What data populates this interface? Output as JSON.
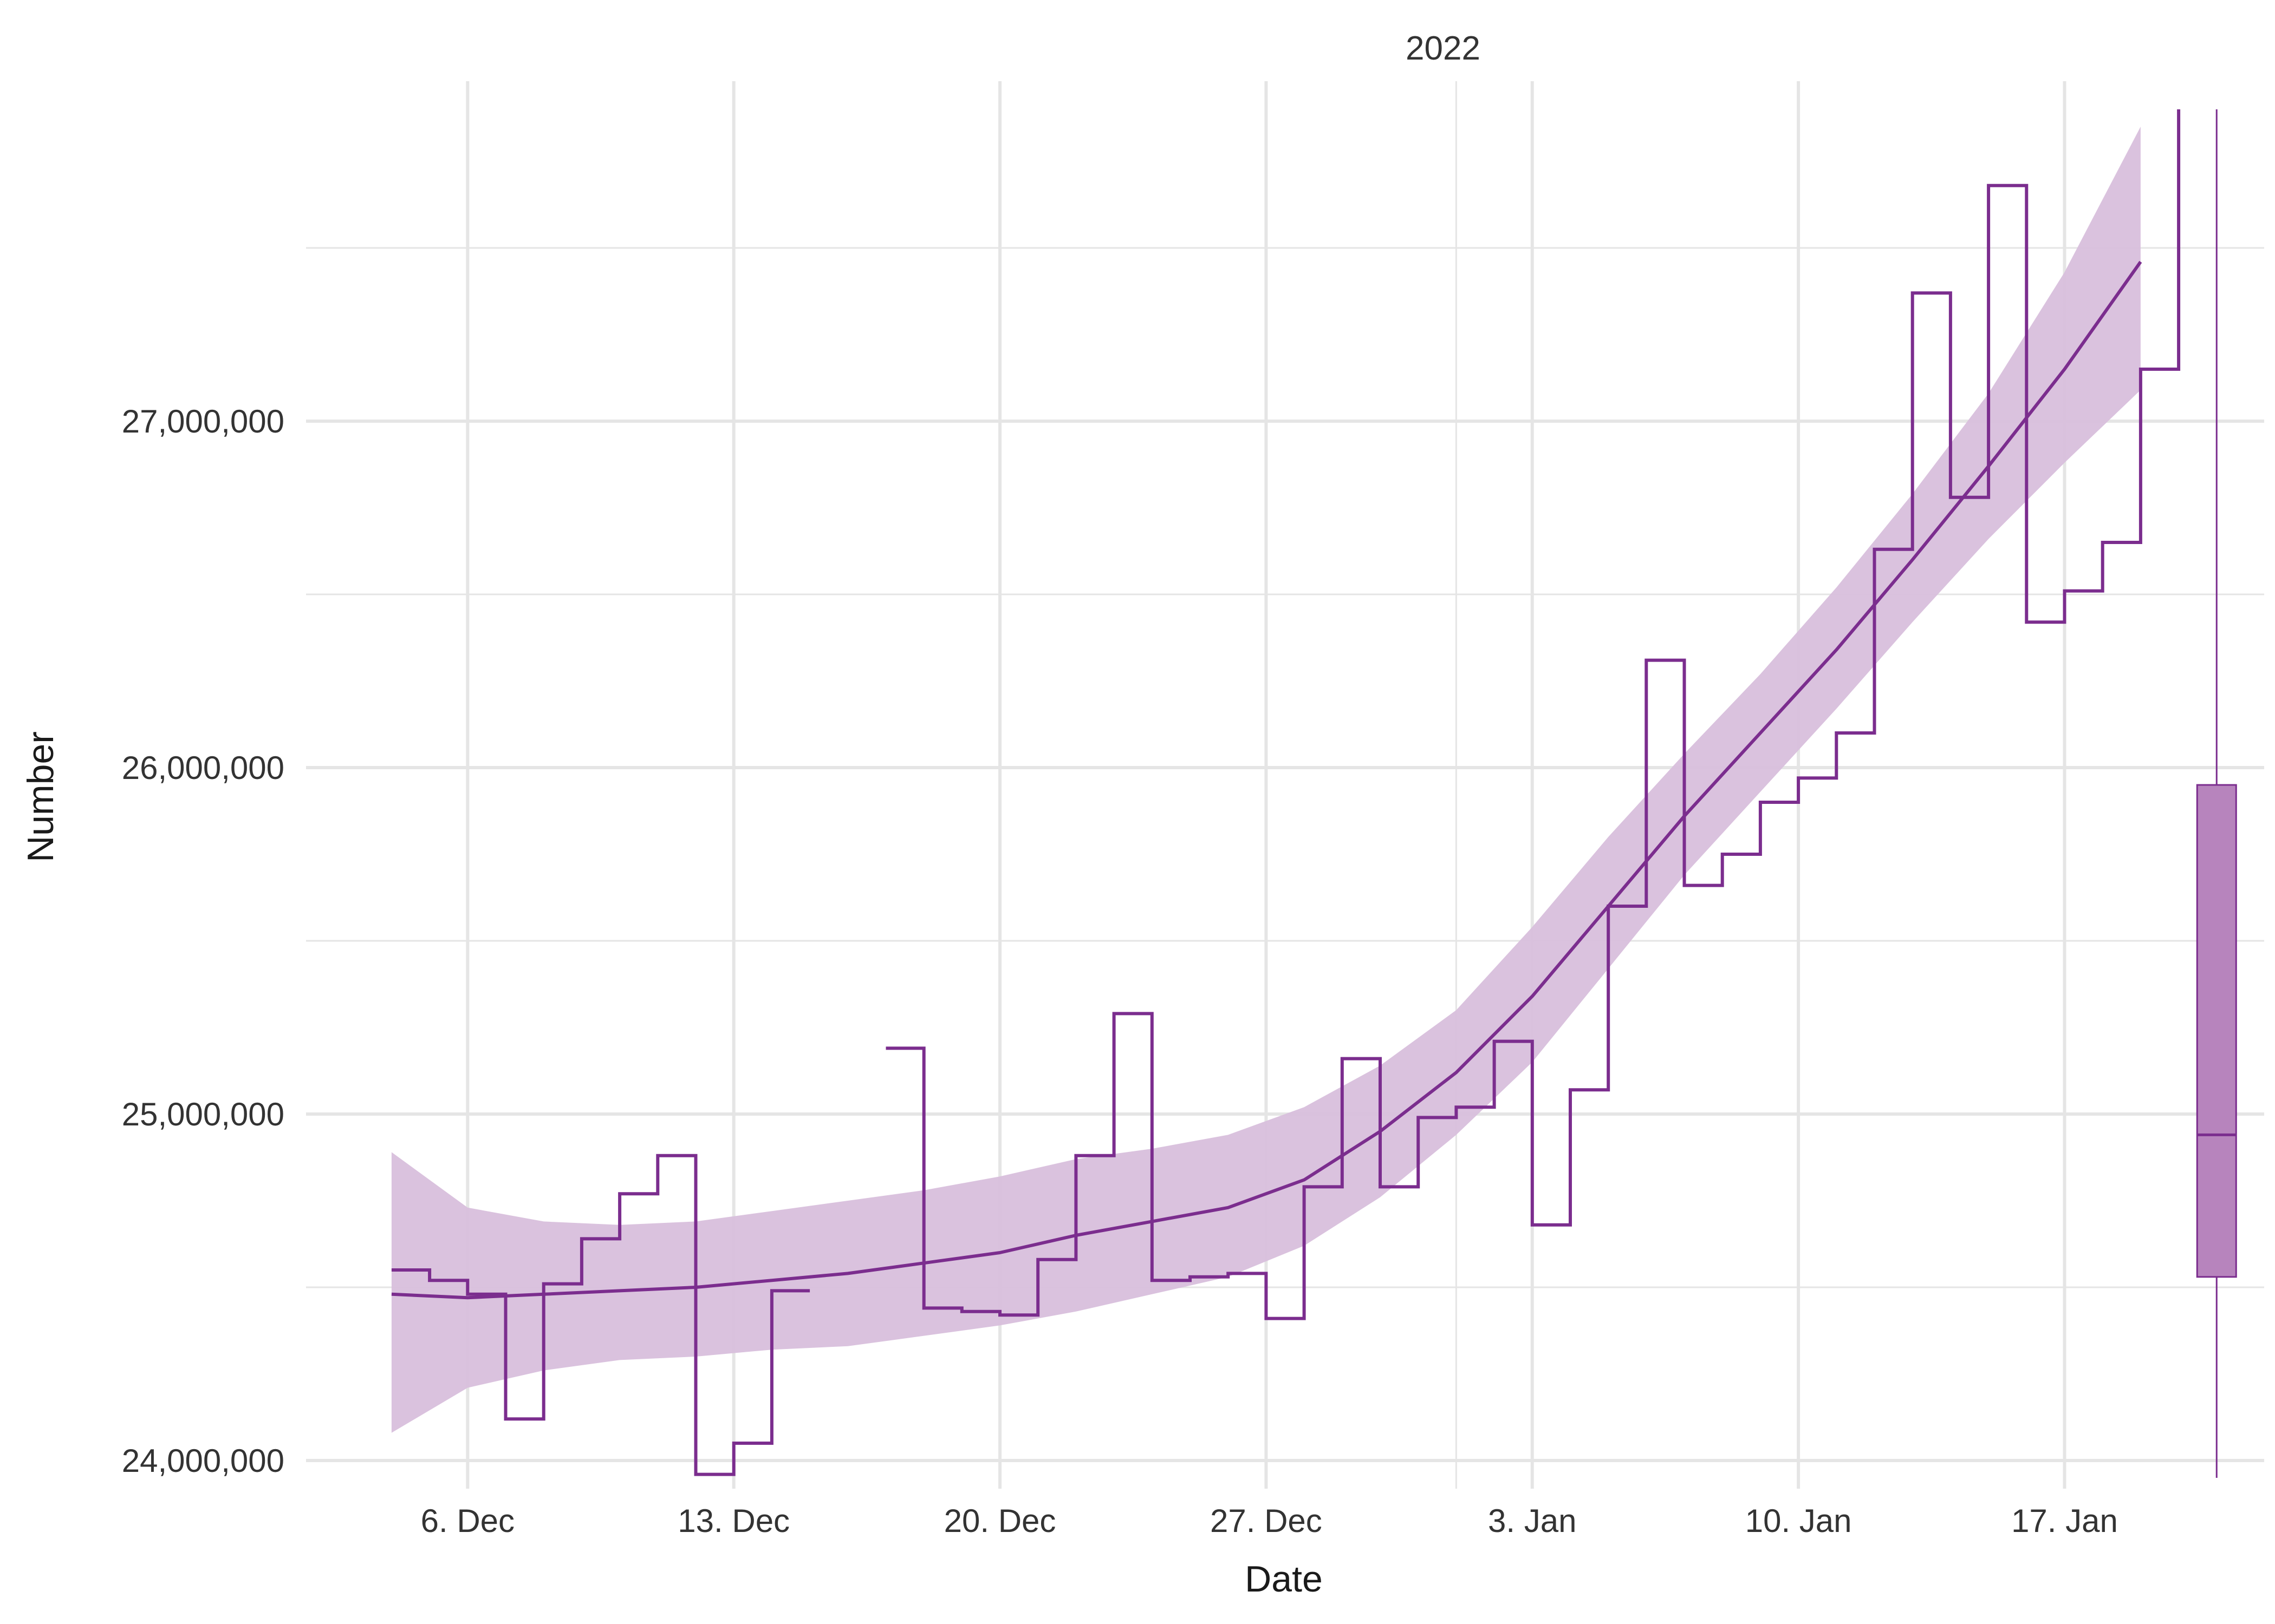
{
  "chart_data": {
    "type": "line",
    "xlabel": "Date",
    "ylabel": "Number",
    "annotation": "2022",
    "grid": true,
    "colors": {
      "series": "#7b2d8e",
      "ribbon": "#d8bfdc",
      "box_fill": "#b784bd",
      "grid": "#e5e5e5"
    },
    "x_ticks": [
      {
        "date": "2021-12-06",
        "label": "6. Dec"
      },
      {
        "date": "2021-12-13",
        "label": "13. Dec"
      },
      {
        "date": "2021-12-20",
        "label": "20. Dec"
      },
      {
        "date": "2021-12-27",
        "label": "27. Dec"
      },
      {
        "date": "2022-01-03",
        "label": "3. Jan"
      },
      {
        "date": "2022-01-10",
        "label": "10. Jan"
      },
      {
        "date": "2022-01-17",
        "label": "17. Jan"
      }
    ],
    "x_annotation_date": "2022-01-01",
    "xlim": [
      "2021-12-01T18:00",
      "2022-01-22T06:00"
    ],
    "y_ticks": [
      {
        "value": 24000000,
        "label": "24,000,000"
      },
      {
        "value": 25000000,
        "label": "25,000,000"
      },
      {
        "value": 26000000,
        "label": "26,000,000"
      },
      {
        "value": 27000000,
        "label": "27,000,000"
      }
    ],
    "ylim": [
      23950000,
      27950000
    ],
    "step_series": [
      {
        "date": "2021-12-04",
        "value": 24550000
      },
      {
        "date": "2021-12-05",
        "value": 24520000
      },
      {
        "date": "2021-12-06",
        "value": 24480000
      },
      {
        "date": "2021-12-07",
        "value": 24120000
      },
      {
        "date": "2021-12-08",
        "value": 24510000
      },
      {
        "date": "2021-12-09",
        "value": 24640000
      },
      {
        "date": "2021-12-10",
        "value": 24770000
      },
      {
        "date": "2021-12-11",
        "value": 24880000
      },
      {
        "date": "2021-12-12",
        "value": 23960000
      },
      {
        "date": "2021-12-13",
        "value": 24050000
      },
      {
        "date": "2021-12-14",
        "value": 24490000
      },
      {
        "date": "2021-12-15",
        "value": null
      },
      {
        "date": "2021-12-16",
        "value": null
      },
      {
        "date": "2021-12-17",
        "value": 25190000
      },
      {
        "date": "2021-12-18",
        "value": 24440000
      },
      {
        "date": "2021-12-19",
        "value": 24430000
      },
      {
        "date": "2021-12-20",
        "value": 24420000
      },
      {
        "date": "2021-12-21",
        "value": 24580000
      },
      {
        "date": "2021-12-22",
        "value": 24880000
      },
      {
        "date": "2021-12-23",
        "value": 25290000
      },
      {
        "date": "2021-12-24",
        "value": 24520000
      },
      {
        "date": "2021-12-25",
        "value": 24530000
      },
      {
        "date": "2021-12-26",
        "value": 24540000
      },
      {
        "date": "2021-12-27",
        "value": 24410000
      },
      {
        "date": "2021-12-28",
        "value": 24790000
      },
      {
        "date": "2021-12-29",
        "value": 25160000
      },
      {
        "date": "2021-12-30",
        "value": 24790000
      },
      {
        "date": "2021-12-31",
        "value": 24990000
      },
      {
        "date": "2022-01-01",
        "value": 25020000
      },
      {
        "date": "2022-01-02",
        "value": 25210000
      },
      {
        "date": "2022-01-03",
        "value": 24680000
      },
      {
        "date": "2022-01-04",
        "value": 25070000
      },
      {
        "date": "2022-01-05",
        "value": 25600000
      },
      {
        "date": "2022-01-06",
        "value": 26310000
      },
      {
        "date": "2022-01-07",
        "value": 25660000
      },
      {
        "date": "2022-01-08",
        "value": 25750000
      },
      {
        "date": "2022-01-09",
        "value": 25900000
      },
      {
        "date": "2022-01-10",
        "value": 25970000
      },
      {
        "date": "2022-01-11",
        "value": 26100000
      },
      {
        "date": "2022-01-12",
        "value": 26630000
      },
      {
        "date": "2022-01-13",
        "value": 27370000
      },
      {
        "date": "2022-01-14",
        "value": 26780000
      },
      {
        "date": "2022-01-15",
        "value": 27680000
      },
      {
        "date": "2022-01-16",
        "value": 26420000
      },
      {
        "date": "2022-01-17",
        "value": 26510000
      },
      {
        "date": "2022-01-18",
        "value": 26650000
      },
      {
        "date": "2022-01-19",
        "value": 27150000
      },
      {
        "date": "2022-01-20",
        "value": 27900000
      }
    ],
    "smooth_series": [
      {
        "date": "2021-12-04",
        "value": 24480000,
        "lower": 24080000,
        "upper": 24890000
      },
      {
        "date": "2021-12-06",
        "value": 24470000,
        "lower": 24210000,
        "upper": 24730000
      },
      {
        "date": "2021-12-08",
        "value": 24480000,
        "lower": 24260000,
        "upper": 24690000
      },
      {
        "date": "2021-12-10",
        "value": 24490000,
        "lower": 24290000,
        "upper": 24680000
      },
      {
        "date": "2021-12-12",
        "value": 24500000,
        "lower": 24300000,
        "upper": 24690000
      },
      {
        "date": "2021-12-14",
        "value": 24520000,
        "lower": 24320000,
        "upper": 24720000
      },
      {
        "date": "2021-12-16",
        "value": 24540000,
        "lower": 24330000,
        "upper": 24750000
      },
      {
        "date": "2021-12-18",
        "value": 24570000,
        "lower": 24360000,
        "upper": 24780000
      },
      {
        "date": "2021-12-20",
        "value": 24600000,
        "lower": 24390000,
        "upper": 24820000
      },
      {
        "date": "2021-12-22",
        "value": 24650000,
        "lower": 24430000,
        "upper": 24870000
      },
      {
        "date": "2021-12-24",
        "value": 24690000,
        "lower": 24480000,
        "upper": 24900000
      },
      {
        "date": "2021-12-26",
        "value": 24730000,
        "lower": 24530000,
        "upper": 24940000
      },
      {
        "date": "2021-12-28",
        "value": 24810000,
        "lower": 24620000,
        "upper": 25020000
      },
      {
        "date": "2021-12-30",
        "value": 24950000,
        "lower": 24760000,
        "upper": 25140000
      },
      {
        "date": "2022-01-01",
        "value": 25120000,
        "lower": 24940000,
        "upper": 25300000
      },
      {
        "date": "2022-01-03",
        "value": 25340000,
        "lower": 25150000,
        "upper": 25540000
      },
      {
        "date": "2022-01-05",
        "value": 25600000,
        "lower": 25420000,
        "upper": 25800000
      },
      {
        "date": "2022-01-07",
        "value": 25860000,
        "lower": 25690000,
        "upper": 26040000
      },
      {
        "date": "2022-01-09",
        "value": 26100000,
        "lower": 25930000,
        "upper": 26270000
      },
      {
        "date": "2022-01-11",
        "value": 26340000,
        "lower": 26170000,
        "upper": 26520000
      },
      {
        "date": "2022-01-13",
        "value": 26600000,
        "lower": 26420000,
        "upper": 26790000
      },
      {
        "date": "2022-01-15",
        "value": 26870000,
        "lower": 26660000,
        "upper": 27080000
      },
      {
        "date": "2022-01-17",
        "value": 27150000,
        "lower": 26880000,
        "upper": 27430000
      },
      {
        "date": "2022-01-19",
        "value": 27460000,
        "lower": 27090000,
        "upper": 27850000
      }
    ],
    "boxplot": {
      "date": "2022-01-21",
      "min": 23950000,
      "q1": 24530000,
      "median": 24940000,
      "q3": 25950000,
      "max": 27900000
    }
  }
}
